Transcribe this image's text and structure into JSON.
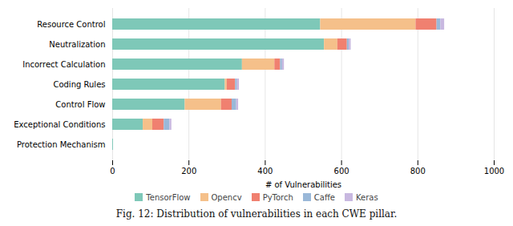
{
  "chart_data": {
    "type": "bar",
    "orientation": "horizontal",
    "stacked": true,
    "caption": "Fig. 12:  Distribution of vulnerabilities in each CWE pillar.",
    "xlabel": "# of Vulnerabilities",
    "categories": [
      "Protection Mechanism",
      "Exceptional Conditions",
      "Control Flow",
      "Coding Rules",
      "Incorrect Calculation",
      "Neutralization",
      "Resource Control"
    ],
    "series": [
      {
        "name": "TensorFlow",
        "color": "#7ec8b8",
        "values": [
          2,
          80,
          190,
          295,
          340,
          555,
          545
        ]
      },
      {
        "name": "Opencv",
        "color": "#f5c08a",
        "values": [
          0,
          25,
          95,
          5,
          85,
          35,
          250
        ]
      },
      {
        "name": "PyTorch",
        "color": "#f08070",
        "values": [
          0,
          30,
          28,
          22,
          15,
          25,
          55
        ]
      },
      {
        "name": "Caffe",
        "color": "#9ab8d8",
        "values": [
          0,
          15,
          12,
          5,
          5,
          5,
          10
        ]
      },
      {
        "name": "Keras",
        "color": "#c8b8e0",
        "values": [
          0,
          5,
          5,
          5,
          5,
          5,
          10
        ]
      }
    ],
    "xlim": [
      0,
      1000
    ],
    "xticks": [
      0,
      200,
      400,
      600,
      800,
      1000
    ],
    "grid": true,
    "legend": "bottom"
  }
}
